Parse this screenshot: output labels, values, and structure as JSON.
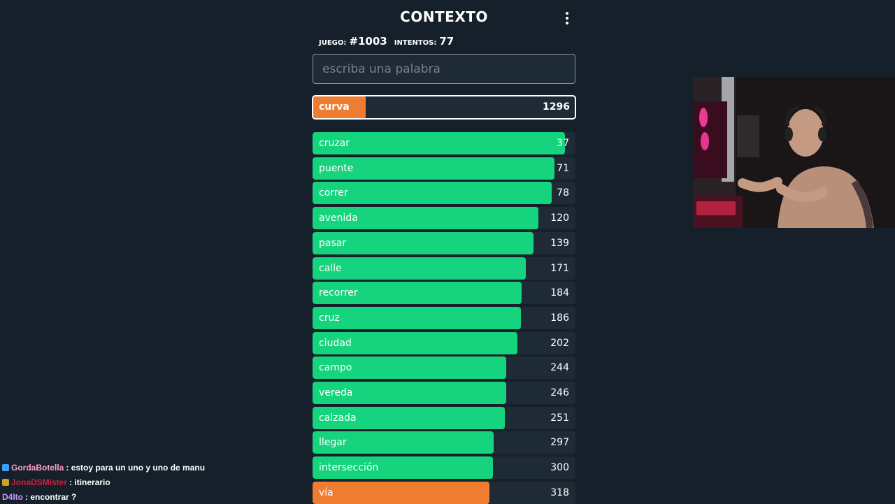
{
  "game": {
    "title": "CONTEXTO",
    "game_label": "JUEGO:",
    "game_number": "#1003",
    "attempts_label": "INTENTOS:",
    "attempts": "77",
    "input_placeholder": "escriba una palabra"
  },
  "current_guess": {
    "word": "curva",
    "rank": "1296",
    "fill_fraction": 0.2,
    "color": "#ef7d31"
  },
  "guesses": [
    {
      "word": "cruzar",
      "rank": "37",
      "fill_fraction": 0.96,
      "color": "#15d47d"
    },
    {
      "word": "puente",
      "rank": "71",
      "fill_fraction": 0.92,
      "color": "#15d47d"
    },
    {
      "word": "correr",
      "rank": "78",
      "fill_fraction": 0.91,
      "color": "#15d47d"
    },
    {
      "word": "avenida",
      "rank": "120",
      "fill_fraction": 0.86,
      "color": "#15d47d"
    },
    {
      "word": "pasar",
      "rank": "139",
      "fill_fraction": 0.84,
      "color": "#15d47d"
    },
    {
      "word": "calle",
      "rank": "171",
      "fill_fraction": 0.81,
      "color": "#15d47d"
    },
    {
      "word": "recorrer",
      "rank": "184",
      "fill_fraction": 0.795,
      "color": "#15d47d"
    },
    {
      "word": "cruz",
      "rank": "186",
      "fill_fraction": 0.793,
      "color": "#15d47d"
    },
    {
      "word": "ciudad",
      "rank": "202",
      "fill_fraction": 0.778,
      "color": "#15d47d"
    },
    {
      "word": "campo",
      "rank": "244",
      "fill_fraction": 0.737,
      "color": "#15d47d"
    },
    {
      "word": "vereda",
      "rank": "246",
      "fill_fraction": 0.736,
      "color": "#15d47d"
    },
    {
      "word": "calzada",
      "rank": "251",
      "fill_fraction": 0.731,
      "color": "#15d47d"
    },
    {
      "word": "llegar",
      "rank": "297",
      "fill_fraction": 0.69,
      "color": "#15d47d"
    },
    {
      "word": "intersección",
      "rank": "300",
      "fill_fraction": 0.687,
      "color": "#15d47d"
    },
    {
      "word": "vía",
      "rank": "318",
      "fill_fraction": 0.672,
      "color": "#ef7d31"
    }
  ],
  "chat": [
    {
      "badge_color": "#3aa0ff",
      "badge_icon": "cube-icon",
      "user": "GordaBotella",
      "user_color": "#ff9fc6",
      "message": ": estoy para un uno y uno de manu"
    },
    {
      "badge_color": "#c9a227",
      "badge_icon": "emote-icon",
      "user": "JonaDSMister",
      "user_color": "#d11f3c",
      "message": ": itinerario"
    },
    {
      "badge_color": "",
      "badge_icon": "",
      "user": "D4lto",
      "user_color": "#c89bff",
      "message": ": encontrar ?"
    }
  ]
}
